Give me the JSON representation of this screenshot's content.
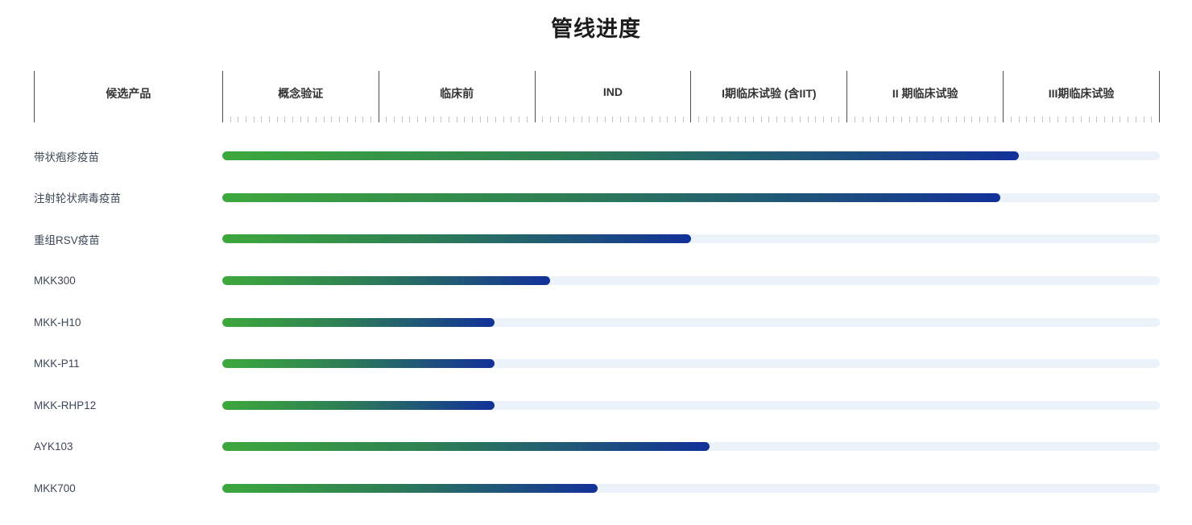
{
  "title": "管线进度",
  "header": {
    "product_column": "候选产品",
    "stages": [
      "概念验证",
      "临床前",
      "IND",
      "I期临床试验 (含IIT)",
      "II 期临床试验",
      "III期临床试验"
    ]
  },
  "colors": {
    "bar_gradient_start": "#3da83c",
    "bar_gradient_mid": "#2e8153",
    "bar_gradient_end": "#123199",
    "track": "#ebf2fa",
    "divider": "#4d4d4d",
    "tick": "#c2c2c2",
    "title_text": "#1c1c1e",
    "header_text": "#333333",
    "row_label_text": "#3c4858"
  },
  "chart_data": {
    "type": "bar",
    "title": "管线进度",
    "orientation": "horizontal-progress",
    "stages": [
      "概念验证",
      "临床前",
      "IND",
      "I期临床试验 (含IIT)",
      "II 期临床试验",
      "III期临床试验"
    ],
    "stage_width_pct": 16.67,
    "rows": [
      {
        "label": "带状疱疹疫苗",
        "progress_pct": 85
      },
      {
        "label": "注射轮状病毒疫苗",
        "progress_pct": 83
      },
      {
        "label": "重组RSV疫苗",
        "progress_pct": 50
      },
      {
        "label": "MKK300",
        "progress_pct": 35
      },
      {
        "label": "MKK-H10",
        "progress_pct": 29
      },
      {
        "label": "MKK-P11",
        "progress_pct": 29
      },
      {
        "label": "MKK-RHP12",
        "progress_pct": 29
      },
      {
        "label": "AYK103",
        "progress_pct": 52
      },
      {
        "label": "MKK700",
        "progress_pct": 40
      }
    ],
    "legend": "none",
    "grid": "tick-ruler-under-header"
  }
}
